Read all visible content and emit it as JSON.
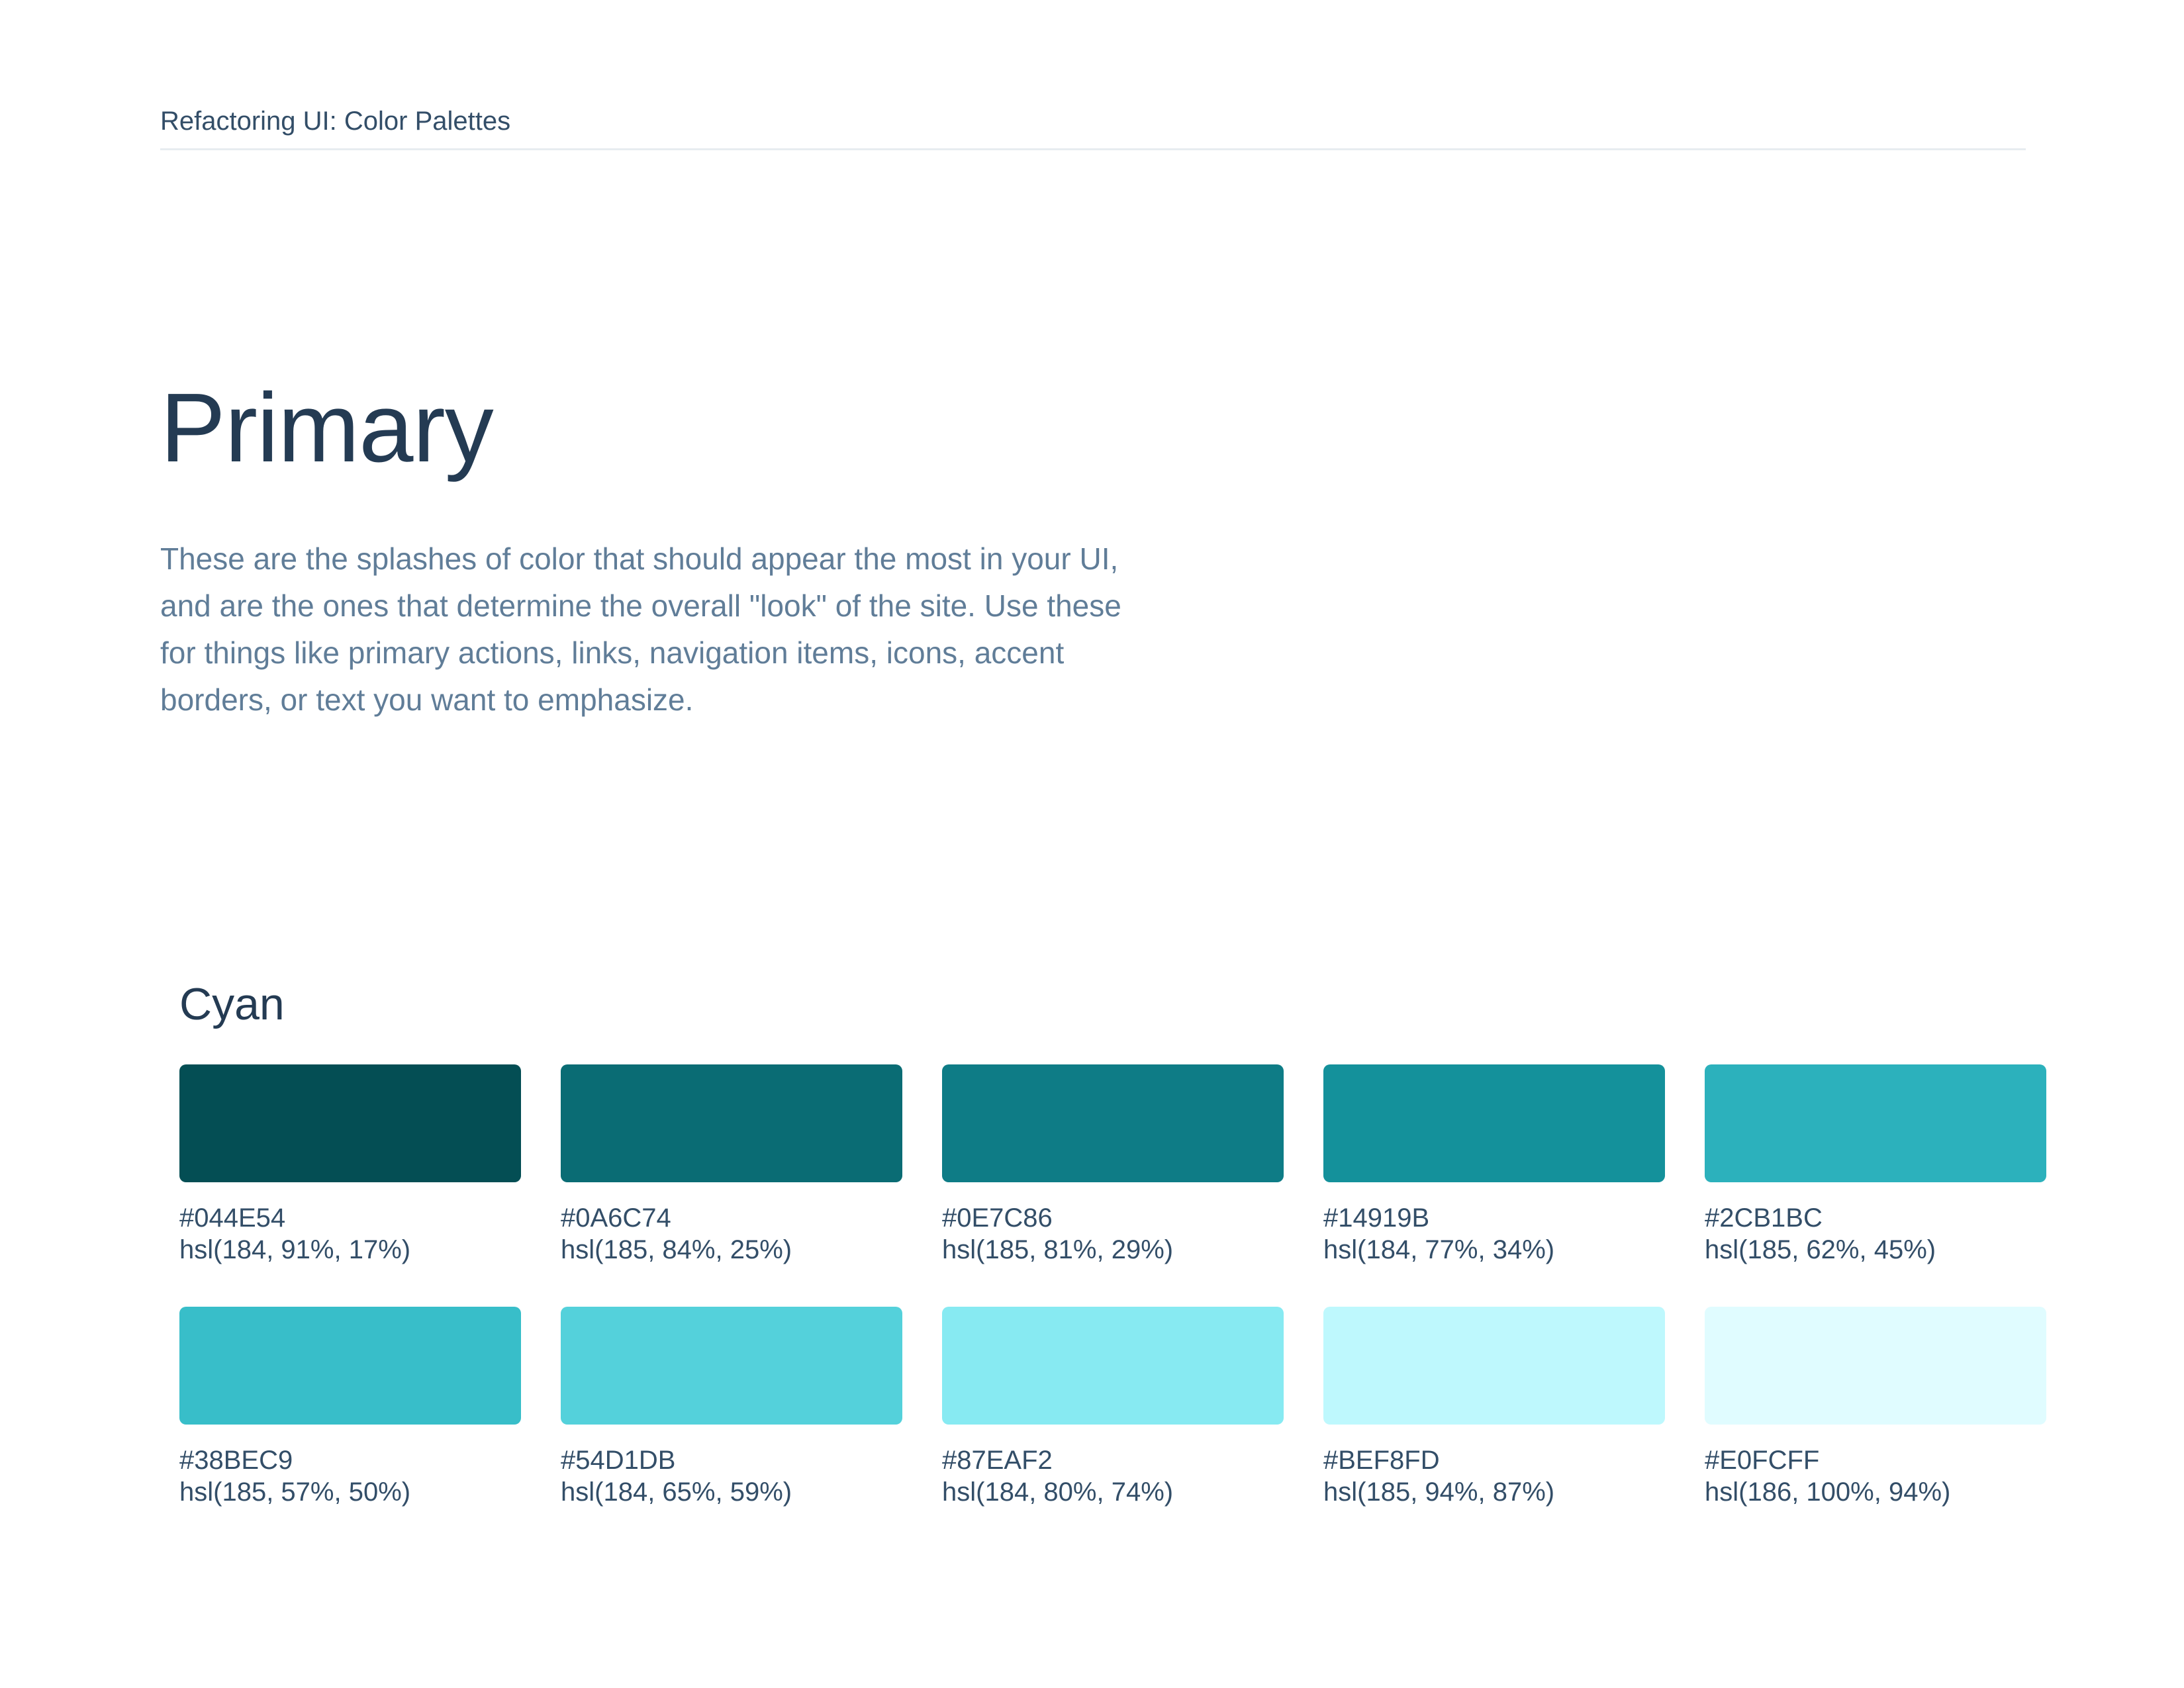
{
  "header": {
    "title": "Refactoring UI: Color Palettes"
  },
  "main": {
    "heading": "Primary",
    "description": "These are the splashes of color that should appear the most in your UI,\nand are the ones that determine the overall \"look\" of the site. Use these\nfor things like primary actions, links, navigation items, icons, accent\nborders, or text you want to emphasize."
  },
  "palette": {
    "name": "Cyan",
    "swatches": [
      {
        "hex": "#044E54",
        "hsl": "hsl(184, 91%, 17%)"
      },
      {
        "hex": "#0A6C74",
        "hsl": "hsl(185, 84%, 25%)"
      },
      {
        "hex": "#0E7C86",
        "hsl": "hsl(185, 81%, 29%)"
      },
      {
        "hex": "#14919B",
        "hsl": "hsl(184, 77%, 34%)"
      },
      {
        "hex": "#2CB1BC",
        "hsl": "hsl(185, 62%, 45%)"
      },
      {
        "hex": "#38BEC9",
        "hsl": "hsl(185, 57%, 50%)"
      },
      {
        "hex": "#54D1DB",
        "hsl": "hsl(184, 65%, 59%)"
      },
      {
        "hex": "#87EAF2",
        "hsl": "hsl(184, 80%, 74%)"
      },
      {
        "hex": "#BEF8FD",
        "hsl": "hsl(185, 94%, 87%)"
      },
      {
        "hex": "#E0FCFF",
        "hsl": "hsl(186, 100%, 94%)"
      }
    ]
  },
  "theme": {
    "background": "#FFFFFF",
    "heading_color": "#243B53",
    "body_color": "#607D98",
    "label_color": "#334E68",
    "divider_color": "#E7ECF0"
  }
}
